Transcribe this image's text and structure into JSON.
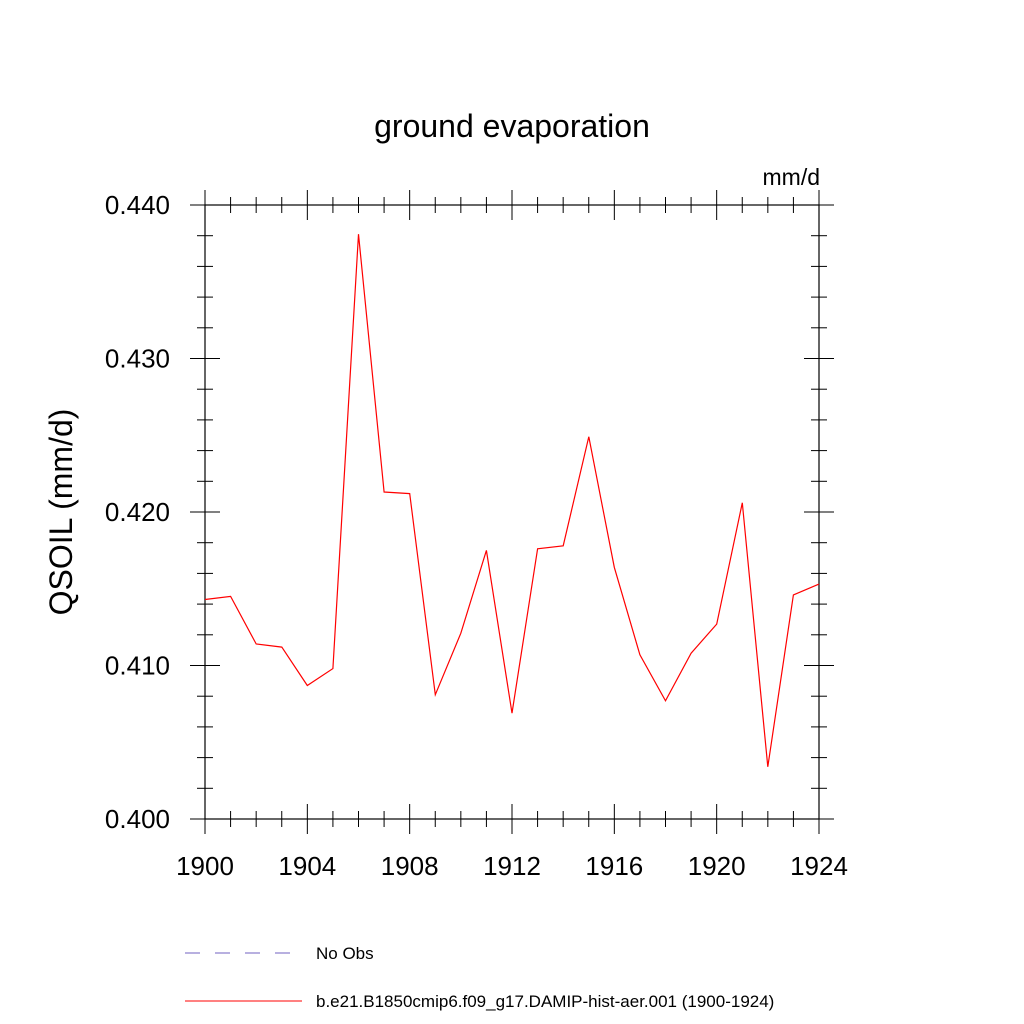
{
  "chart_data": {
    "type": "line",
    "title": "ground evaporation",
    "units": "mm/d",
    "ylabel": "QSOIL  (mm/d)",
    "xlabel": "",
    "xlim": [
      1900,
      1924
    ],
    "ylim": [
      0.4,
      0.44
    ],
    "xticks": [
      "1900",
      "1904",
      "1908",
      "1912",
      "1916",
      "1920",
      "1924"
    ],
    "yticks": [
      "0.400",
      "0.410",
      "0.420",
      "0.430",
      "0.440"
    ],
    "grid": false,
    "legend_placement": "bottom",
    "series": [
      {
        "name": "b.e21.B1850cmip6.f09_g17.DAMIP-hist-aer.001 (1900-1924)",
        "color": "#ff0000",
        "style": "solid",
        "x": [
          1900,
          1901,
          1902,
          1903,
          1904,
          1905,
          1906,
          1907,
          1908,
          1909,
          1910,
          1911,
          1912,
          1913,
          1914,
          1915,
          1916,
          1917,
          1918,
          1919,
          1920,
          1921,
          1922,
          1923,
          1924
        ],
        "values": [
          0.4143,
          0.4145,
          0.4114,
          0.4112,
          0.4087,
          0.4098,
          0.4381,
          0.4213,
          0.4212,
          0.4081,
          0.4121,
          0.4175,
          0.4069,
          0.4176,
          0.4178,
          0.4249,
          0.4164,
          0.4107,
          0.4077,
          0.4108,
          0.4127,
          0.4206,
          0.4034,
          0.4146,
          0.4153
        ]
      }
    ],
    "legend": [
      {
        "label": "No Obs",
        "color": "#7060c0",
        "style": "dashed"
      },
      {
        "label": "b.e21.B1850cmip6.f09_g17.DAMIP-hist-aer.001 (1900-1924)",
        "color": "#ff0000",
        "style": "solid"
      }
    ]
  }
}
